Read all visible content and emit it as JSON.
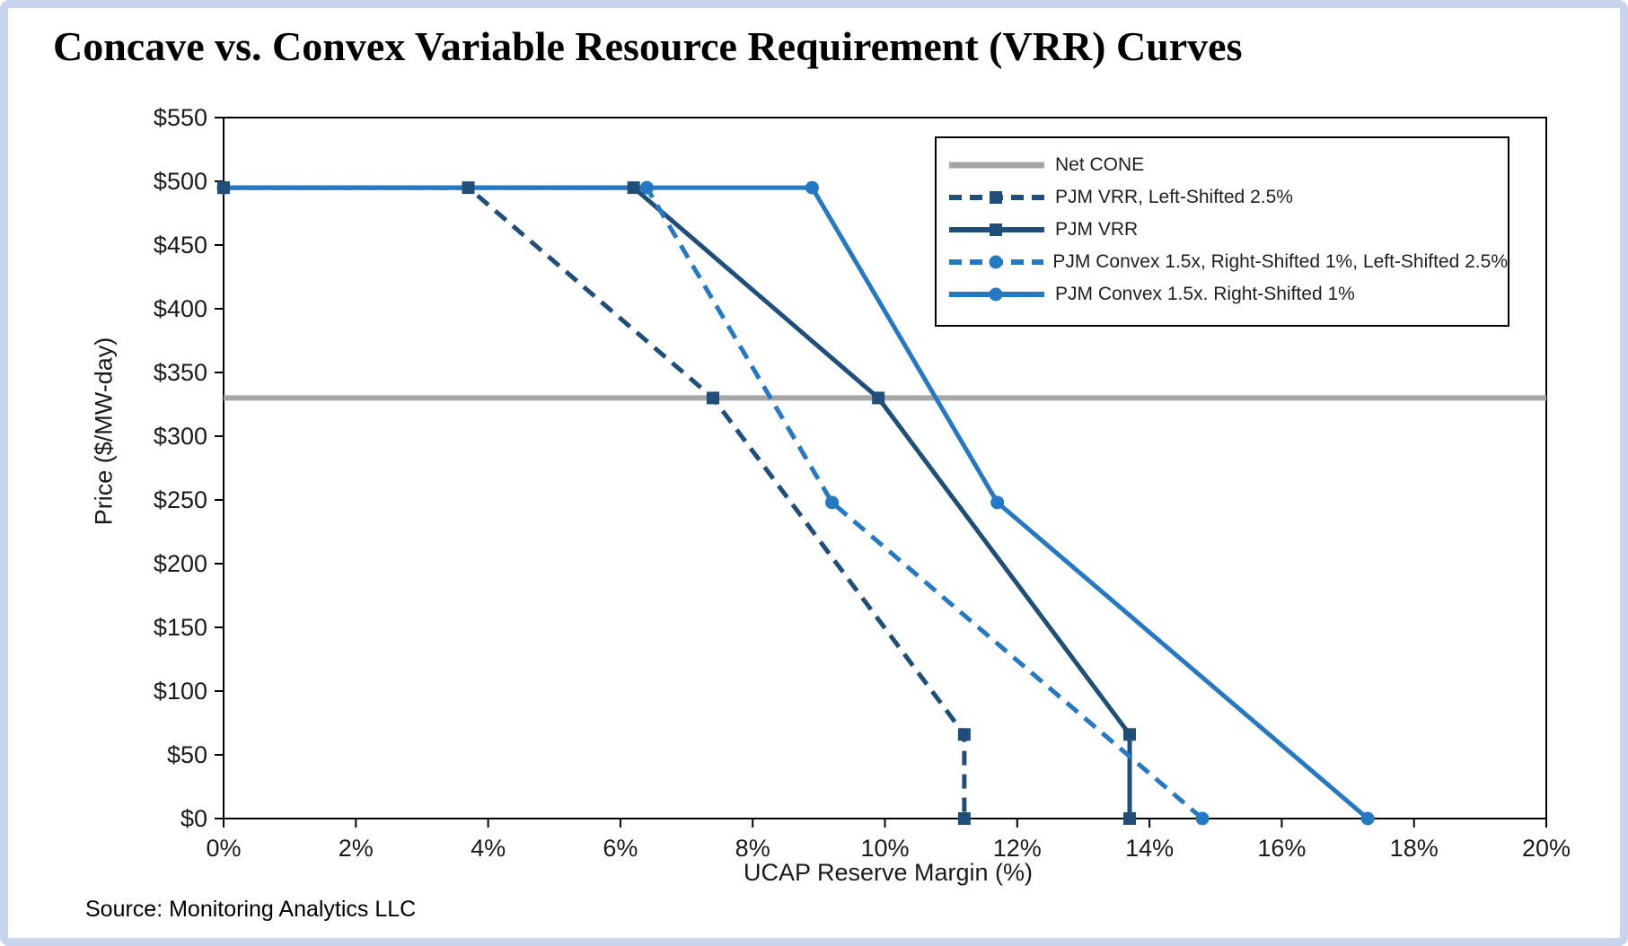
{
  "title": "Concave vs. Convex Variable Resource Requirement (VRR) Curves",
  "source": "Source: Monitoring Analytics LLC",
  "chart_data": {
    "type": "line",
    "title": "Concave vs. Convex Variable Resource Requirement (VRR) Curves",
    "xlabel": "UCAP Reserve Margin (%)",
    "ylabel": "Price ($/MW-day)",
    "xlim": [
      0,
      20
    ],
    "ylim": [
      0,
      550
    ],
    "x_tick_step": 2,
    "y_tick_step": 50,
    "x_tick_suffix": "%",
    "y_tick_prefix": "$",
    "grid": false,
    "legend_position": "upper right",
    "net_cone_value": 330,
    "price_cap_value": 495,
    "series": [
      {
        "name": "Net CONE",
        "color": "#a6a6a6",
        "dash": false,
        "marker": "none",
        "width": 6,
        "points": [
          [
            0,
            330
          ],
          [
            20,
            330
          ]
        ]
      },
      {
        "name": "PJM VRR, Left-Shifted 2.5%",
        "color": "#1f4e79",
        "dash": true,
        "marker": "square",
        "width": 5,
        "points": [
          [
            0,
            495
          ],
          [
            3.7,
            495
          ],
          [
            7.4,
            330
          ],
          [
            11.2,
            66
          ],
          [
            11.2,
            0
          ]
        ]
      },
      {
        "name": "PJM VRR",
        "color": "#1f4e79",
        "dash": false,
        "marker": "square",
        "width": 5,
        "points": [
          [
            0,
            495
          ],
          [
            6.2,
            495
          ],
          [
            9.9,
            330
          ],
          [
            13.7,
            66
          ],
          [
            13.7,
            0
          ]
        ]
      },
      {
        "name": "PJM Convex 1.5x, Right-Shifted 1%, Left-Shifted 2.5%",
        "color": "#2579c2",
        "dash": true,
        "marker": "circle",
        "width": 5,
        "points": [
          [
            0,
            495
          ],
          [
            6.4,
            495
          ],
          [
            9.2,
            248
          ],
          [
            14.8,
            0
          ]
        ]
      },
      {
        "name": "PJM Convex 1.5x. Right-Shifted 1%",
        "color": "#2579c2",
        "dash": false,
        "marker": "circle",
        "width": 5,
        "points": [
          [
            0,
            495
          ],
          [
            8.9,
            495
          ],
          [
            11.7,
            248
          ],
          [
            17.3,
            0
          ]
        ]
      }
    ]
  }
}
